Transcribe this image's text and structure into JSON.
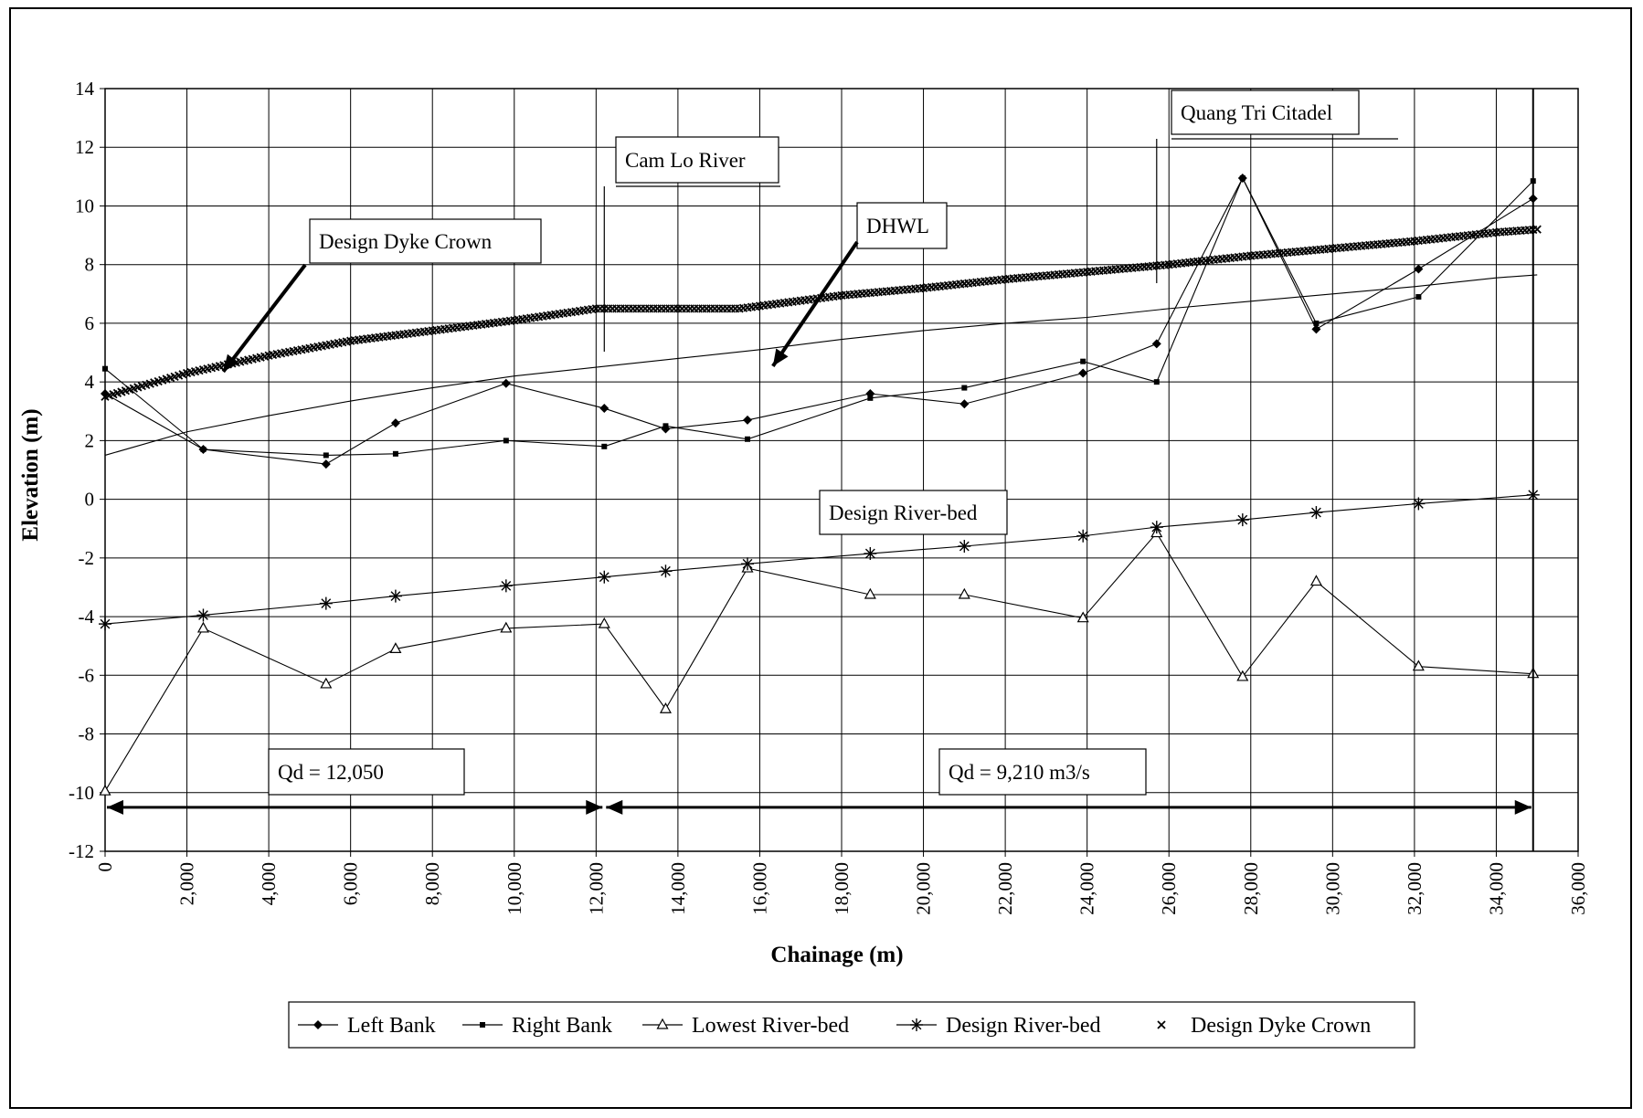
{
  "chart_data": {
    "type": "line",
    "xlabel": "Chainage (m)",
    "ylabel": "Elevation (m)",
    "xlim": [
      0,
      36000
    ],
    "ylim": [
      -12,
      14
    ],
    "grid": true,
    "legend_position": "bottom",
    "x_ticks": [
      "0",
      "2,000",
      "4,000",
      "6,000",
      "8,000",
      "10,000",
      "12,000",
      "14,000",
      "16,000",
      "18,000",
      "20,000",
      "22,000",
      "24,000",
      "26,000",
      "28,000",
      "30,000",
      "32,000",
      "34,000",
      "36,000"
    ],
    "y_ticks": [
      "14",
      "12",
      "10",
      "8",
      "6",
      "4",
      "2",
      "0",
      "-2",
      "-4",
      "-6",
      "-8",
      "-10",
      "-12"
    ],
    "series": [
      {
        "name": "Left Bank",
        "marker": "diamond",
        "x": [
          0,
          2400,
          5400,
          7100,
          9800,
          12200,
          13700,
          15700,
          18700,
          21000,
          23900,
          25700,
          27800,
          29600,
          32100,
          34900
        ],
        "y": [
          3.6,
          1.7,
          1.2,
          2.6,
          3.95,
          3.1,
          2.4,
          2.7,
          3.6,
          3.25,
          4.3,
          5.3,
          10.95,
          5.8,
          7.85,
          10.25
        ]
      },
      {
        "name": "Right Bank",
        "marker": "square",
        "x": [
          0,
          2400,
          5400,
          7100,
          9800,
          12200,
          13700,
          15700,
          18700,
          21000,
          23900,
          25700,
          27800,
          29600,
          32100,
          34900
        ],
        "y": [
          4.45,
          1.7,
          1.5,
          1.55,
          2.0,
          1.8,
          2.5,
          2.05,
          3.45,
          3.8,
          4.7,
          4.0,
          10.95,
          6.0,
          6.9,
          10.85
        ]
      },
      {
        "name": "Lowest River-bed",
        "marker": "triangle",
        "x": [
          0,
          2400,
          5400,
          7100,
          9800,
          12200,
          13700,
          15700,
          18700,
          21000,
          23900,
          25700,
          27800,
          29600,
          32100,
          34900
        ],
        "y": [
          -9.95,
          -4.4,
          -6.3,
          -5.1,
          -4.4,
          -4.25,
          -7.15,
          -2.35,
          -3.25,
          -3.25,
          -4.05,
          -1.15,
          -6.05,
          -2.8,
          -5.7,
          -5.95
        ]
      },
      {
        "name": "Design River-bed",
        "marker": "asterisk",
        "x": [
          0,
          2400,
          5400,
          7100,
          9800,
          12200,
          13700,
          15700,
          18700,
          21000,
          23900,
          25700,
          27800,
          29600,
          32100,
          34900
        ],
        "y": [
          -4.25,
          -3.95,
          -3.55,
          -3.3,
          -2.95,
          -2.65,
          -2.45,
          -2.2,
          -1.85,
          -1.6,
          -1.25,
          -0.95,
          -0.7,
          -0.45,
          -0.15,
          0.15
        ]
      },
      {
        "name": "Design Dyke Crown",
        "marker": "x",
        "x": [
          0,
          2000,
          4000,
          6000,
          8000,
          10000,
          12000,
          14000,
          15500,
          18000,
          20000,
          22000,
          24000,
          26000,
          28000,
          30000,
          32000,
          34000,
          35000
        ],
        "y": [
          3.5,
          4.3,
          4.9,
          5.4,
          5.75,
          6.1,
          6.5,
          6.5,
          6.5,
          6.95,
          7.2,
          7.5,
          7.75,
          8.0,
          8.3,
          8.55,
          8.8,
          9.1,
          9.2
        ]
      },
      {
        "name": "DHWL",
        "marker": "none",
        "x": [
          0,
          2000,
          4000,
          6000,
          8000,
          10000,
          12000,
          14000,
          16000,
          18000,
          20000,
          22000,
          24000,
          26000,
          28000,
          30000,
          32000,
          34000,
          35000
        ],
        "y": [
          1.5,
          2.3,
          2.85,
          3.35,
          3.8,
          4.2,
          4.5,
          4.8,
          5.1,
          5.45,
          5.75,
          6.0,
          6.2,
          6.5,
          6.75,
          7.0,
          7.25,
          7.55,
          7.65
        ]
      }
    ],
    "annotations": [
      {
        "text": "Design Dyke Crown"
      },
      {
        "text": "Cam Lo River"
      },
      {
        "text": "DHWL"
      },
      {
        "text": "Quang Tri Citadel"
      },
      {
        "text": "Design River-bed"
      },
      {
        "text": "Qd = 12,050"
      },
      {
        "text": "Qd = 9,210 m3/s"
      }
    ],
    "callout_targets": {
      "design_dyke_crown_arrow": [
        3000,
        4.6
      ],
      "dhwl_arrow": [
        16500,
        5.1
      ],
      "cam_lo_marker_x": 12200,
      "quang_tri_marker_x": 25700,
      "qd_range_1": [
        0,
        12200
      ],
      "qd_range_2": [
        12200,
        34900
      ],
      "qd_level": -10.5
    }
  }
}
